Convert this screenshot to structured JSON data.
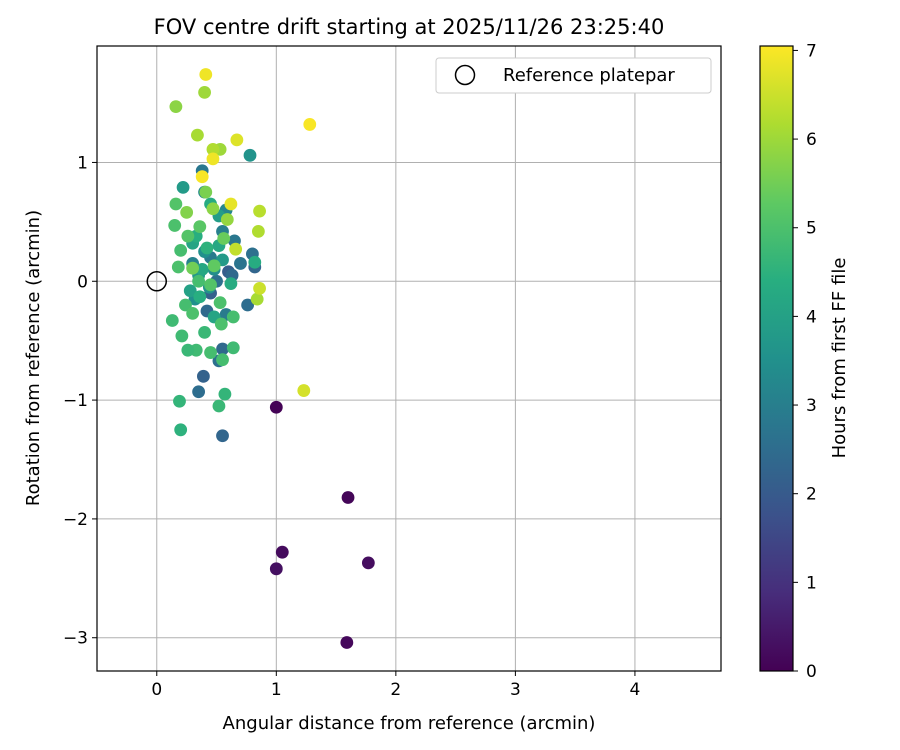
{
  "chart_data": {
    "type": "scatter",
    "title": "FOV centre drift starting at 2025/11/26 23:25:40",
    "xlabel": "Angular distance from reference (arcmin)",
    "ylabel": "Rotation from reference (arcmin)",
    "xlim": [
      -0.5,
      4.72
    ],
    "ylim": [
      -3.28,
      1.98
    ],
    "xticks": [
      0,
      1,
      2,
      3,
      4
    ],
    "yticks": [
      -3,
      -2,
      -1,
      0,
      1
    ],
    "grid": true,
    "legend": {
      "position": "top-right",
      "entries": [
        "Reference platepar"
      ]
    },
    "reference_point": {
      "x": 0,
      "y": 0,
      "label": "Reference platepar"
    },
    "colorbar": {
      "label": "Hours from first FF file",
      "colormap": "viridis",
      "range": [
        0,
        7.05
      ],
      "ticks": [
        0,
        1,
        2,
        3,
        4,
        5,
        6,
        7
      ]
    },
    "points": [
      {
        "x": 1.0,
        "y": -1.06,
        "c": 0.05
      },
      {
        "x": 1.6,
        "y": -1.82,
        "c": 0.1
      },
      {
        "x": 1.05,
        "y": -2.28,
        "c": 0.2
      },
      {
        "x": 1.0,
        "y": -2.42,
        "c": 0.3
      },
      {
        "x": 1.77,
        "y": -2.37,
        "c": 0.25
      },
      {
        "x": 1.59,
        "y": -3.04,
        "c": 0.15
      },
      {
        "x": 0.55,
        "y": -1.3,
        "c": 2.3
      },
      {
        "x": 0.35,
        "y": -0.93,
        "c": 2.5
      },
      {
        "x": 0.39,
        "y": -0.8,
        "c": 2.2
      },
      {
        "x": 0.52,
        "y": -0.67,
        "c": 2.6
      },
      {
        "x": 0.55,
        "y": -0.57,
        "c": 2.4
      },
      {
        "x": 0.38,
        "y": 0.93,
        "c": 2.8
      },
      {
        "x": 0.6,
        "y": 0.08,
        "c": 2.1
      },
      {
        "x": 0.63,
        "y": 0.05,
        "c": 2.4
      },
      {
        "x": 0.7,
        "y": 0.15,
        "c": 2.7
      },
      {
        "x": 0.76,
        "y": -0.2,
        "c": 2.5
      },
      {
        "x": 0.8,
        "y": 0.23,
        "c": 2.6
      },
      {
        "x": 0.82,
        "y": 0.12,
        "c": 2.3
      },
      {
        "x": 0.65,
        "y": 0.34,
        "c": 2.8
      },
      {
        "x": 0.45,
        "y": 0.2,
        "c": 2.9
      },
      {
        "x": 0.45,
        "y": -0.1,
        "c": 2.2
      },
      {
        "x": 0.5,
        "y": 0.0,
        "c": 2.6
      },
      {
        "x": 0.42,
        "y": -0.25,
        "c": 2.4
      },
      {
        "x": 0.58,
        "y": -0.28,
        "c": 2.9
      },
      {
        "x": 0.3,
        "y": 0.15,
        "c": 3.1
      },
      {
        "x": 0.55,
        "y": 0.42,
        "c": 3.0
      },
      {
        "x": 0.58,
        "y": 0.6,
        "c": 3.2
      },
      {
        "x": 0.4,
        "y": 0.75,
        "c": 3.3
      },
      {
        "x": 0.48,
        "y": 0.1,
        "c": 3.4
      },
      {
        "x": 0.4,
        "y": 0.25,
        "c": 3.5
      },
      {
        "x": 0.78,
        "y": 1.06,
        "c": 3.6
      },
      {
        "x": 0.22,
        "y": 0.79,
        "c": 3.8
      },
      {
        "x": 0.35,
        "y": 0.05,
        "c": 3.7
      },
      {
        "x": 0.44,
        "y": -0.05,
        "c": 3.6
      },
      {
        "x": 0.52,
        "y": 0.55,
        "c": 3.9
      },
      {
        "x": 0.32,
        "y": -0.15,
        "c": 3.5
      },
      {
        "x": 0.55,
        "y": 0.18,
        "c": 3.8
      },
      {
        "x": 0.28,
        "y": -0.08,
        "c": 4.0
      },
      {
        "x": 0.3,
        "y": 0.32,
        "c": 4.1
      },
      {
        "x": 0.38,
        "y": 0.1,
        "c": 4.2
      },
      {
        "x": 0.45,
        "y": 0.65,
        "c": 4.3
      },
      {
        "x": 0.48,
        "y": -0.3,
        "c": 4.1
      },
      {
        "x": 0.36,
        "y": -0.13,
        "c": 4.4
      },
      {
        "x": 0.52,
        "y": 0.3,
        "c": 4.2
      },
      {
        "x": 0.62,
        "y": -0.02,
        "c": 4.3
      },
      {
        "x": 0.42,
        "y": 0.28,
        "c": 4.5
      },
      {
        "x": 0.33,
        "y": 0.38,
        "c": 4.4
      },
      {
        "x": 0.82,
        "y": 0.16,
        "c": 4.3
      },
      {
        "x": 0.19,
        "y": -1.01,
        "c": 4.6
      },
      {
        "x": 0.2,
        "y": -1.25,
        "c": 4.5
      },
      {
        "x": 0.52,
        "y": -1.05,
        "c": 4.7
      },
      {
        "x": 0.57,
        "y": -0.95,
        "c": 4.6
      },
      {
        "x": 0.4,
        "y": -0.43,
        "c": 4.7
      },
      {
        "x": 0.33,
        "y": -0.58,
        "c": 4.8
      },
      {
        "x": 0.26,
        "y": -0.58,
        "c": 4.7
      },
      {
        "x": 0.21,
        "y": -0.46,
        "c": 4.8
      },
      {
        "x": 0.55,
        "y": -0.66,
        "c": 4.9
      },
      {
        "x": 0.64,
        "y": -0.56,
        "c": 4.8
      },
      {
        "x": 0.64,
        "y": -0.3,
        "c": 4.9
      },
      {
        "x": 0.54,
        "y": -0.36,
        "c": 5.0
      },
      {
        "x": 0.45,
        "y": -0.6,
        "c": 4.9
      },
      {
        "x": 0.13,
        "y": -0.33,
        "c": 4.8
      },
      {
        "x": 0.24,
        "y": -0.2,
        "c": 4.9
      },
      {
        "x": 0.3,
        "y": -0.27,
        "c": 5.0
      },
      {
        "x": 0.35,
        "y": 0.0,
        "c": 4.9
      },
      {
        "x": 0.45,
        "y": -0.03,
        "c": 5.1
      },
      {
        "x": 0.53,
        "y": -0.18,
        "c": 5.0
      },
      {
        "x": 0.18,
        "y": 0.12,
        "c": 5.0
      },
      {
        "x": 0.2,
        "y": 0.26,
        "c": 4.9
      },
      {
        "x": 0.26,
        "y": 0.38,
        "c": 5.1
      },
      {
        "x": 0.15,
        "y": 0.47,
        "c": 5.0
      },
      {
        "x": 0.16,
        "y": 0.65,
        "c": 5.1
      },
      {
        "x": 0.36,
        "y": 0.46,
        "c": 5.2
      },
      {
        "x": 0.48,
        "y": 0.13,
        "c": 5.3
      },
      {
        "x": 0.56,
        "y": 0.36,
        "c": 5.4
      },
      {
        "x": 0.41,
        "y": 0.75,
        "c": 5.6
      },
      {
        "x": 0.25,
        "y": 0.58,
        "c": 5.7
      },
      {
        "x": 0.47,
        "y": 0.61,
        "c": 5.8
      },
      {
        "x": 0.59,
        "y": 0.52,
        "c": 5.9
      },
      {
        "x": 0.3,
        "y": 0.11,
        "c": 5.5
      },
      {
        "x": 0.16,
        "y": 1.47,
        "c": 5.8
      },
      {
        "x": 0.4,
        "y": 1.59,
        "c": 6.0
      },
      {
        "x": 0.34,
        "y": 1.23,
        "c": 6.1
      },
      {
        "x": 0.53,
        "y": 1.11,
        "c": 6.0
      },
      {
        "x": 0.47,
        "y": 1.11,
        "c": 6.2
      },
      {
        "x": 0.86,
        "y": 0.59,
        "c": 6.3
      },
      {
        "x": 0.85,
        "y": 0.42,
        "c": 6.2
      },
      {
        "x": 0.84,
        "y": -0.15,
        "c": 6.1
      },
      {
        "x": 0.86,
        "y": -0.06,
        "c": 6.5
      },
      {
        "x": 0.66,
        "y": 0.27,
        "c": 6.4
      },
      {
        "x": 1.23,
        "y": -0.92,
        "c": 6.6
      },
      {
        "x": 0.62,
        "y": 0.65,
        "c": 6.8
      },
      {
        "x": 0.67,
        "y": 1.19,
        "c": 6.7
      },
      {
        "x": 0.47,
        "y": 1.03,
        "c": 6.9
      },
      {
        "x": 0.38,
        "y": 0.88,
        "c": 7.0
      },
      {
        "x": 0.41,
        "y": 1.74,
        "c": 6.9
      },
      {
        "x": 1.28,
        "y": 1.32,
        "c": 7.0
      }
    ]
  }
}
